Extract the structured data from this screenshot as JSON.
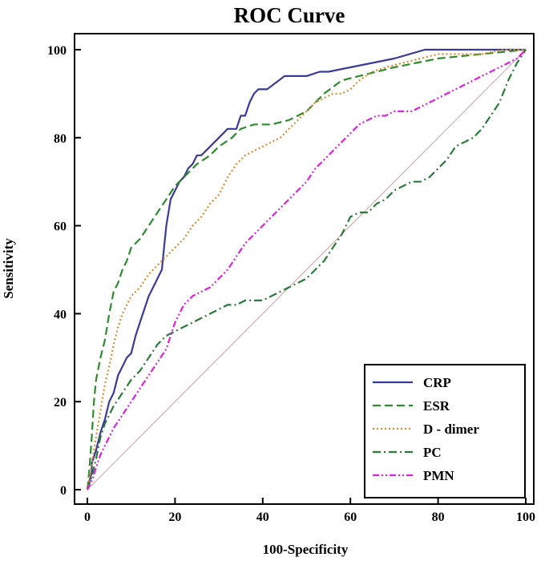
{
  "chart_data": {
    "type": "line",
    "title": "ROC Curve",
    "xlabel": "100-Specificity",
    "ylabel": "Sensitivity",
    "xlim": [
      0,
      100
    ],
    "ylim": [
      0,
      100
    ],
    "xticks": [
      0,
      20,
      40,
      60,
      80,
      100
    ],
    "yticks": [
      0,
      20,
      40,
      60,
      80,
      100
    ],
    "legend_position": "bottom-right",
    "reference_line": {
      "name": "Reference",
      "color": "#c9a0a0",
      "x": [
        0,
        100
      ],
      "y": [
        0,
        100
      ]
    },
    "series": [
      {
        "name": "CRP",
        "color": "#3a3a9a",
        "dash": "solid",
        "x": [
          0,
          1,
          1,
          2,
          3,
          4,
          5,
          6,
          7,
          8,
          9,
          10,
          11,
          12,
          13,
          14,
          15,
          16,
          17,
          17.5,
          18,
          18.5,
          19,
          20,
          21,
          22,
          23,
          24,
          25,
          26,
          27,
          28,
          29,
          30,
          31,
          32,
          34,
          35,
          36,
          37,
          38,
          39,
          41,
          45,
          50,
          53,
          55,
          60,
          65,
          70,
          77,
          100
        ],
        "y": [
          0,
          4,
          6,
          9,
          13,
          16,
          20,
          22,
          26,
          28,
          30,
          31,
          35,
          38,
          41,
          44,
          46,
          48,
          50,
          55,
          60,
          63,
          66,
          68,
          70,
          71,
          73,
          74,
          76,
          76,
          77,
          78,
          79,
          80,
          81,
          82,
          82,
          85,
          85,
          88,
          90,
          91,
          91,
          94,
          94,
          95,
          95,
          96,
          97,
          98,
          100,
          100
        ]
      },
      {
        "name": "ESR",
        "color": "#2e8b2e",
        "dash": "10,5",
        "x": [
          0,
          0.5,
          1,
          1.5,
          2,
          3,
          4,
          5,
          6,
          7,
          8,
          9,
          10,
          12,
          14,
          16,
          18,
          20,
          22,
          25,
          28,
          30,
          33,
          35,
          38,
          42,
          46,
          50,
          54,
          58,
          62,
          66,
          70,
          75,
          80,
          90,
          100
        ],
        "y": [
          0,
          5,
          12,
          20,
          25,
          30,
          34,
          40,
          45,
          47,
          50,
          52,
          55,
          57,
          60,
          63,
          66,
          69,
          71,
          74,
          76,
          78,
          80,
          82,
          83,
          83,
          84,
          86,
          90,
          93,
          94,
          95,
          96,
          97,
          98,
          99,
          100
        ]
      },
      {
        "name": "D - dimer",
        "color": "#e08a2c",
        "dash": "2,3",
        "x": [
          0,
          1,
          2,
          3,
          4,
          5,
          6,
          7,
          8,
          9,
          10,
          12,
          14,
          16,
          18,
          20,
          22,
          24,
          26,
          28,
          30,
          32,
          34,
          36,
          38,
          40,
          42,
          44,
          46,
          48,
          50,
          52,
          54,
          56,
          58,
          60,
          62,
          65,
          68,
          72,
          76,
          80,
          85,
          90,
          95,
          100
        ],
        "y": [
          0,
          6,
          12,
          18,
          24,
          28,
          33,
          37,
          40,
          42,
          44,
          46,
          49,
          51,
          53,
          55,
          57,
          60,
          62,
          65,
          67,
          71,
          74,
          76,
          77,
          78,
          79,
          80,
          82,
          84,
          86,
          88,
          89,
          90,
          90,
          91,
          93,
          95,
          96,
          97,
          98,
          99,
          99,
          99,
          100,
          100
        ]
      },
      {
        "name": "PC",
        "color": "#2a7a3a",
        "dash": "10,4,2,4",
        "x": [
          0,
          1,
          2,
          3,
          4,
          6,
          8,
          10,
          12,
          14,
          16,
          18,
          20,
          22,
          24,
          26,
          28,
          30,
          32,
          34,
          36,
          38,
          40,
          42,
          44,
          46,
          48,
          50,
          52,
          54,
          56,
          58,
          60,
          62,
          64,
          66,
          68,
          70,
          72,
          74,
          76,
          78,
          80,
          82,
          84,
          86,
          88,
          90,
          92,
          94,
          96,
          98,
          100
        ],
        "y": [
          0,
          3,
          7,
          12,
          15,
          19,
          22,
          25,
          27,
          30,
          33,
          35,
          36,
          37,
          38,
          39,
          40,
          41,
          42,
          42,
          43,
          43,
          43,
          44,
          45,
          46,
          47,
          48,
          50,
          52,
          55,
          58,
          62,
          63,
          63,
          65,
          66,
          68,
          69,
          70,
          70,
          71,
          73,
          75,
          78,
          79,
          80,
          82,
          85,
          88,
          93,
          97,
          100
        ]
      },
      {
        "name": "PMN",
        "color": "#e020e0",
        "dash": "8,3,2,3,2,3",
        "x": [
          0,
          1,
          2,
          3,
          4,
          5,
          6,
          8,
          10,
          12,
          14,
          16,
          18,
          20,
          22,
          24,
          26,
          28,
          30,
          32,
          34,
          36,
          38,
          40,
          42,
          44,
          46,
          48,
          50,
          52,
          54,
          56,
          58,
          60,
          62,
          64,
          66,
          68,
          70,
          72,
          74,
          76,
          78,
          80,
          82,
          84,
          86,
          88,
          90,
          92,
          94,
          96,
          98,
          100
        ],
        "y": [
          0,
          2,
          5,
          8,
          10,
          12,
          14,
          17,
          20,
          23,
          26,
          29,
          32,
          38,
          42,
          44,
          45,
          46,
          48,
          50,
          53,
          56,
          58,
          60,
          62,
          64,
          66,
          68,
          70,
          73,
          75,
          77,
          79,
          81,
          83,
          84,
          85,
          85,
          86,
          86,
          86,
          87,
          88,
          89,
          90,
          91,
          92,
          93,
          94,
          95,
          96,
          97,
          98,
          100
        ]
      }
    ]
  }
}
